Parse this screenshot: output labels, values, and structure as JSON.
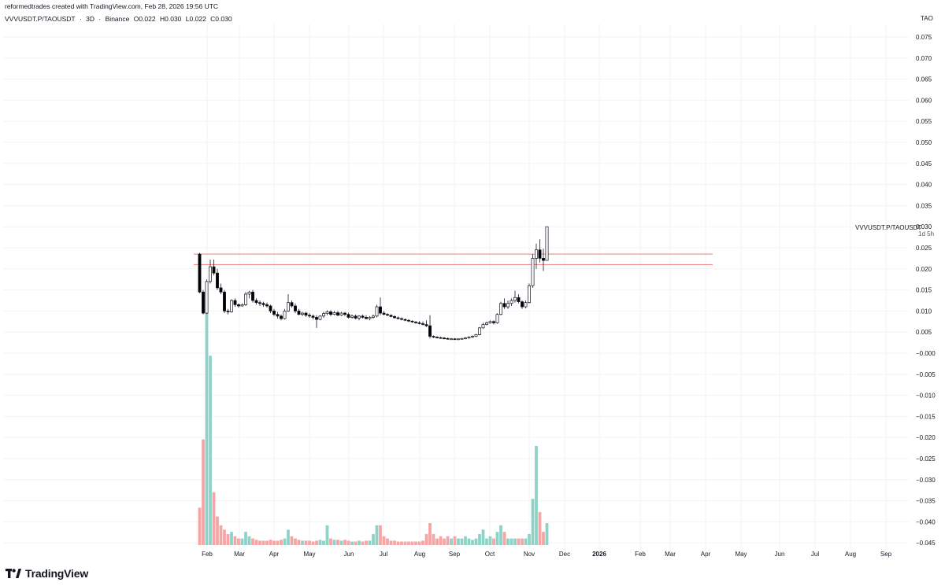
{
  "attribution": "reformedtrades created with TradingView.com, Feb 28, 2026 19:56 UTC",
  "legend": {
    "symbol": "VVVUSDT.P/TAOUSDT",
    "sep1": "·",
    "interval": "3D",
    "sep2": "·",
    "exchange": "Binance",
    "open": "O0.022",
    "high": "H0.030",
    "low": "L0.022",
    "close": "C0.030"
  },
  "currency_label": "TAO",
  "series_tag": "VVVUSDT.P/TAOUSDT",
  "series_countdown": "1d 5h",
  "brand": "TradingView",
  "colors": {
    "up_wick": "#131722",
    "down_body": "#000000",
    "resistance": "#f28b8b",
    "volume_up": "#8fd3c8",
    "volume_down": "#f5a5a5",
    "axis_text": "#131722"
  },
  "chart_data": {
    "type": "candlestick",
    "y_ticks": [
      "0.075",
      "0.070",
      "0.065",
      "0.060",
      "0.055",
      "0.050",
      "0.045",
      "0.040",
      "0.035",
      "0.030",
      "0.025",
      "0.020",
      "0.015",
      "0.010",
      "0.005",
      "−0.000",
      "−0.005",
      "−0.010",
      "−0.015",
      "−0.020",
      "−0.025",
      "−0.030",
      "−0.035",
      "−0.040",
      "−0.045"
    ],
    "ylim": [
      -0.047,
      0.078
    ],
    "x_ticks": [
      "Feb",
      "Mar",
      "Apr",
      "May",
      "Jun",
      "Jul",
      "Aug",
      "Sep",
      "Oct",
      "Nov",
      "Dec",
      "2026",
      "Feb",
      "Mar",
      "Apr",
      "May",
      "Jun",
      "Jul",
      "Aug",
      "Sep"
    ],
    "resistance_levels": [
      0.0235,
      0.021
    ],
    "candles": [
      {
        "o": 0.0235,
        "h": 0.0238,
        "l": 0.0142,
        "c": 0.0145,
        "v": 0.0085
      },
      {
        "o": 0.0145,
        "h": 0.015,
        "l": 0.0092,
        "c": 0.0095,
        "v": 0.024
      },
      {
        "o": 0.0095,
        "h": 0.0175,
        "l": 0.0093,
        "c": 0.017,
        "v": 0.058
      },
      {
        "o": 0.017,
        "h": 0.0222,
        "l": 0.0165,
        "c": 0.0205,
        "v": 0.043
      },
      {
        "o": 0.0205,
        "h": 0.0222,
        "l": 0.0185,
        "c": 0.019,
        "v": 0.012
      },
      {
        "o": 0.019,
        "h": 0.02,
        "l": 0.015,
        "c": 0.0155,
        "v": 0.0065
      },
      {
        "o": 0.0155,
        "h": 0.0165,
        "l": 0.014,
        "c": 0.0145,
        "v": 0.0045
      },
      {
        "o": 0.0145,
        "h": 0.015,
        "l": 0.0095,
        "c": 0.01,
        "v": 0.0035
      },
      {
        "o": 0.01,
        "h": 0.0105,
        "l": 0.0092,
        "c": 0.0098,
        "v": 0.0025
      },
      {
        "o": 0.0098,
        "h": 0.0128,
        "l": 0.0096,
        "c": 0.0125,
        "v": 0.003
      },
      {
        "o": 0.0125,
        "h": 0.013,
        "l": 0.011,
        "c": 0.0115,
        "v": 0.002
      },
      {
        "o": 0.0115,
        "h": 0.0118,
        "l": 0.0108,
        "c": 0.0112,
        "v": 0.0015
      },
      {
        "o": 0.0112,
        "h": 0.0118,
        "l": 0.011,
        "c": 0.0115,
        "v": 0.0015
      },
      {
        "o": 0.0115,
        "h": 0.0145,
        "l": 0.0112,
        "c": 0.014,
        "v": 0.003
      },
      {
        "o": 0.014,
        "h": 0.0148,
        "l": 0.013,
        "c": 0.0145,
        "v": 0.002
      },
      {
        "o": 0.0145,
        "h": 0.015,
        "l": 0.012,
        "c": 0.0125,
        "v": 0.0015
      },
      {
        "o": 0.0125,
        "h": 0.013,
        "l": 0.0115,
        "c": 0.012,
        "v": 0.0012
      },
      {
        "o": 0.012,
        "h": 0.0125,
        "l": 0.0112,
        "c": 0.0118,
        "v": 0.001
      },
      {
        "o": 0.0118,
        "h": 0.0122,
        "l": 0.011,
        "c": 0.0115,
        "v": 0.001
      },
      {
        "o": 0.0115,
        "h": 0.012,
        "l": 0.0108,
        "c": 0.0112,
        "v": 0.001
      },
      {
        "o": 0.0112,
        "h": 0.0115,
        "l": 0.0095,
        "c": 0.01,
        "v": 0.0012
      },
      {
        "o": 0.01,
        "h": 0.0105,
        "l": 0.0088,
        "c": 0.0092,
        "v": 0.001
      },
      {
        "o": 0.0092,
        "h": 0.0098,
        "l": 0.0082,
        "c": 0.0088,
        "v": 0.001
      },
      {
        "o": 0.0088,
        "h": 0.0092,
        "l": 0.0078,
        "c": 0.0082,
        "v": 0.0012
      },
      {
        "o": 0.0082,
        "h": 0.0105,
        "l": 0.008,
        "c": 0.01,
        "v": 0.0015
      },
      {
        "o": 0.01,
        "h": 0.014,
        "l": 0.0098,
        "c": 0.012,
        "v": 0.0035
      },
      {
        "o": 0.012,
        "h": 0.0125,
        "l": 0.0108,
        "c": 0.0112,
        "v": 0.002
      },
      {
        "o": 0.0112,
        "h": 0.0118,
        "l": 0.0095,
        "c": 0.01,
        "v": 0.0015
      },
      {
        "o": 0.01,
        "h": 0.0105,
        "l": 0.009,
        "c": 0.0092,
        "v": 0.0012
      },
      {
        "o": 0.0092,
        "h": 0.0098,
        "l": 0.0088,
        "c": 0.0095,
        "v": 0.001
      },
      {
        "o": 0.0095,
        "h": 0.0098,
        "l": 0.0086,
        "c": 0.009,
        "v": 0.001
      },
      {
        "o": 0.009,
        "h": 0.0095,
        "l": 0.0084,
        "c": 0.0088,
        "v": 0.001
      },
      {
        "o": 0.0088,
        "h": 0.0092,
        "l": 0.008,
        "c": 0.0085,
        "v": 0.0008
      },
      {
        "o": 0.0085,
        "h": 0.009,
        "l": 0.006,
        "c": 0.008,
        "v": 0.001
      },
      {
        "o": 0.008,
        "h": 0.009,
        "l": 0.0078,
        "c": 0.0088,
        "v": 0.0012
      },
      {
        "o": 0.0088,
        "h": 0.0098,
        "l": 0.0084,
        "c": 0.0094,
        "v": 0.001
      },
      {
        "o": 0.0094,
        "h": 0.0102,
        "l": 0.009,
        "c": 0.0098,
        "v": 0.0045
      },
      {
        "o": 0.0098,
        "h": 0.0102,
        "l": 0.0088,
        "c": 0.0092,
        "v": 0.0015
      },
      {
        "o": 0.0092,
        "h": 0.01,
        "l": 0.009,
        "c": 0.0096,
        "v": 0.0012
      },
      {
        "o": 0.0096,
        "h": 0.01,
        "l": 0.0088,
        "c": 0.009,
        "v": 0.0012
      },
      {
        "o": 0.009,
        "h": 0.0098,
        "l": 0.0088,
        "c": 0.0095,
        "v": 0.001
      },
      {
        "o": 0.0095,
        "h": 0.0098,
        "l": 0.0088,
        "c": 0.0092,
        "v": 0.0012
      },
      {
        "o": 0.0092,
        "h": 0.0096,
        "l": 0.0082,
        "c": 0.0085,
        "v": 0.001
      },
      {
        "o": 0.0085,
        "h": 0.0092,
        "l": 0.0082,
        "c": 0.0088,
        "v": 0.0008
      },
      {
        "o": 0.0088,
        "h": 0.0092,
        "l": 0.008,
        "c": 0.0083,
        "v": 0.0008
      },
      {
        "o": 0.0083,
        "h": 0.009,
        "l": 0.0078,
        "c": 0.0088,
        "v": 0.001
      },
      {
        "o": 0.0088,
        "h": 0.0092,
        "l": 0.0082,
        "c": 0.0085,
        "v": 0.0008
      },
      {
        "o": 0.0085,
        "h": 0.009,
        "l": 0.008,
        "c": 0.0082,
        "v": 0.001
      },
      {
        "o": 0.0082,
        "h": 0.0088,
        "l": 0.0078,
        "c": 0.0085,
        "v": 0.001
      },
      {
        "o": 0.0085,
        "h": 0.0092,
        "l": 0.0082,
        "c": 0.0088,
        "v": 0.0025
      },
      {
        "o": 0.0088,
        "h": 0.0115,
        "l": 0.0085,
        "c": 0.011,
        "v": 0.0045
      },
      {
        "o": 0.011,
        "h": 0.0132,
        "l": 0.009,
        "c": 0.0095,
        "v": 0.0045
      },
      {
        "o": 0.0095,
        "h": 0.01,
        "l": 0.009,
        "c": 0.0092,
        "v": 0.002
      },
      {
        "o": 0.0092,
        "h": 0.0095,
        "l": 0.0088,
        "c": 0.009,
        "v": 0.0015
      },
      {
        "o": 0.009,
        "h": 0.0092,
        "l": 0.0085,
        "c": 0.0087,
        "v": 0.001
      },
      {
        "o": 0.0087,
        "h": 0.009,
        "l": 0.0082,
        "c": 0.0084,
        "v": 0.001
      },
      {
        "o": 0.0084,
        "h": 0.0087,
        "l": 0.008,
        "c": 0.0082,
        "v": 0.0008
      },
      {
        "o": 0.0082,
        "h": 0.0085,
        "l": 0.0078,
        "c": 0.008,
        "v": 0.0008
      },
      {
        "o": 0.008,
        "h": 0.0082,
        "l": 0.0076,
        "c": 0.0078,
        "v": 0.0008
      },
      {
        "o": 0.0078,
        "h": 0.008,
        "l": 0.0074,
        "c": 0.0076,
        "v": 0.0008
      },
      {
        "o": 0.0076,
        "h": 0.0078,
        "l": 0.0072,
        "c": 0.0074,
        "v": 0.0008
      },
      {
        "o": 0.0074,
        "h": 0.0076,
        "l": 0.007,
        "c": 0.0072,
        "v": 0.0008
      },
      {
        "o": 0.0072,
        "h": 0.0076,
        "l": 0.0068,
        "c": 0.007,
        "v": 0.0008
      },
      {
        "o": 0.007,
        "h": 0.0075,
        "l": 0.0066,
        "c": 0.0068,
        "v": 0.001
      },
      {
        "o": 0.0068,
        "h": 0.0078,
        "l": 0.0062,
        "c": 0.0065,
        "v": 0.0025
      },
      {
        "o": 0.0065,
        "h": 0.009,
        "l": 0.0035,
        "c": 0.004,
        "v": 0.005
      },
      {
        "o": 0.004,
        "h": 0.0042,
        "l": 0.0036,
        "c": 0.0038,
        "v": 0.0025
      },
      {
        "o": 0.0038,
        "h": 0.004,
        "l": 0.0035,
        "c": 0.0037,
        "v": 0.0015
      },
      {
        "o": 0.0037,
        "h": 0.0039,
        "l": 0.0034,
        "c": 0.0036,
        "v": 0.002
      },
      {
        "o": 0.0036,
        "h": 0.0038,
        "l": 0.0033,
        "c": 0.0035,
        "v": 0.0015
      },
      {
        "o": 0.0035,
        "h": 0.0037,
        "l": 0.0032,
        "c": 0.0034,
        "v": 0.002
      },
      {
        "o": 0.0034,
        "h": 0.0036,
        "l": 0.0032,
        "c": 0.0034,
        "v": 0.0015
      },
      {
        "o": 0.0034,
        "h": 0.0036,
        "l": 0.0032,
        "c": 0.0033,
        "v": 0.002
      },
      {
        "o": 0.0033,
        "h": 0.0035,
        "l": 0.0031,
        "c": 0.0034,
        "v": 0.0015
      },
      {
        "o": 0.0034,
        "h": 0.0036,
        "l": 0.0032,
        "c": 0.0035,
        "v": 0.0015
      },
      {
        "o": 0.0035,
        "h": 0.0038,
        "l": 0.0033,
        "c": 0.0036,
        "v": 0.002
      },
      {
        "o": 0.0036,
        "h": 0.004,
        "l": 0.0034,
        "c": 0.0038,
        "v": 0.0015
      },
      {
        "o": 0.0038,
        "h": 0.0042,
        "l": 0.0036,
        "c": 0.004,
        "v": 0.0012
      },
      {
        "o": 0.004,
        "h": 0.0046,
        "l": 0.0038,
        "c": 0.0044,
        "v": 0.0015
      },
      {
        "o": 0.0044,
        "h": 0.0062,
        "l": 0.0042,
        "c": 0.006,
        "v": 0.0025
      },
      {
        "o": 0.006,
        "h": 0.0072,
        "l": 0.0058,
        "c": 0.0068,
        "v": 0.0035
      },
      {
        "o": 0.0068,
        "h": 0.0075,
        "l": 0.0066,
        "c": 0.0072,
        "v": 0.0015
      },
      {
        "o": 0.0072,
        "h": 0.0078,
        "l": 0.007,
        "c": 0.0075,
        "v": 0.002
      },
      {
        "o": 0.0075,
        "h": 0.0078,
        "l": 0.0068,
        "c": 0.0072,
        "v": 0.0015
      },
      {
        "o": 0.0072,
        "h": 0.0095,
        "l": 0.007,
        "c": 0.0092,
        "v": 0.003
      },
      {
        "o": 0.0092,
        "h": 0.0122,
        "l": 0.009,
        "c": 0.0118,
        "v": 0.0045
      },
      {
        "o": 0.0118,
        "h": 0.013,
        "l": 0.0105,
        "c": 0.011,
        "v": 0.003
      },
      {
        "o": 0.011,
        "h": 0.0125,
        "l": 0.0105,
        "c": 0.0118,
        "v": 0.0015
      },
      {
        "o": 0.0118,
        "h": 0.013,
        "l": 0.0112,
        "c": 0.0125,
        "v": 0.0015
      },
      {
        "o": 0.0125,
        "h": 0.0148,
        "l": 0.012,
        "c": 0.0132,
        "v": 0.0015
      },
      {
        "o": 0.0132,
        "h": 0.014,
        "l": 0.0118,
        "c": 0.0122,
        "v": 0.0015
      },
      {
        "o": 0.0122,
        "h": 0.0125,
        "l": 0.0105,
        "c": 0.011,
        "v": 0.0015
      },
      {
        "o": 0.011,
        "h": 0.0125,
        "l": 0.0106,
        "c": 0.012,
        "v": 0.0015
      },
      {
        "o": 0.012,
        "h": 0.0165,
        "l": 0.0118,
        "c": 0.016,
        "v": 0.0025
      },
      {
        "o": 0.016,
        "h": 0.0235,
        "l": 0.0155,
        "c": 0.0225,
        "v": 0.0105
      },
      {
        "o": 0.0225,
        "h": 0.026,
        "l": 0.02,
        "c": 0.0245,
        "v": 0.0225
      },
      {
        "o": 0.0245,
        "h": 0.027,
        "l": 0.0215,
        "c": 0.0225,
        "v": 0.0075
      },
      {
        "o": 0.0225,
        "h": 0.0248,
        "l": 0.0195,
        "c": 0.022,
        "v": 0.003
      },
      {
        "o": 0.022,
        "h": 0.03,
        "l": 0.022,
        "c": 0.03,
        "v": 0.005
      }
    ]
  }
}
